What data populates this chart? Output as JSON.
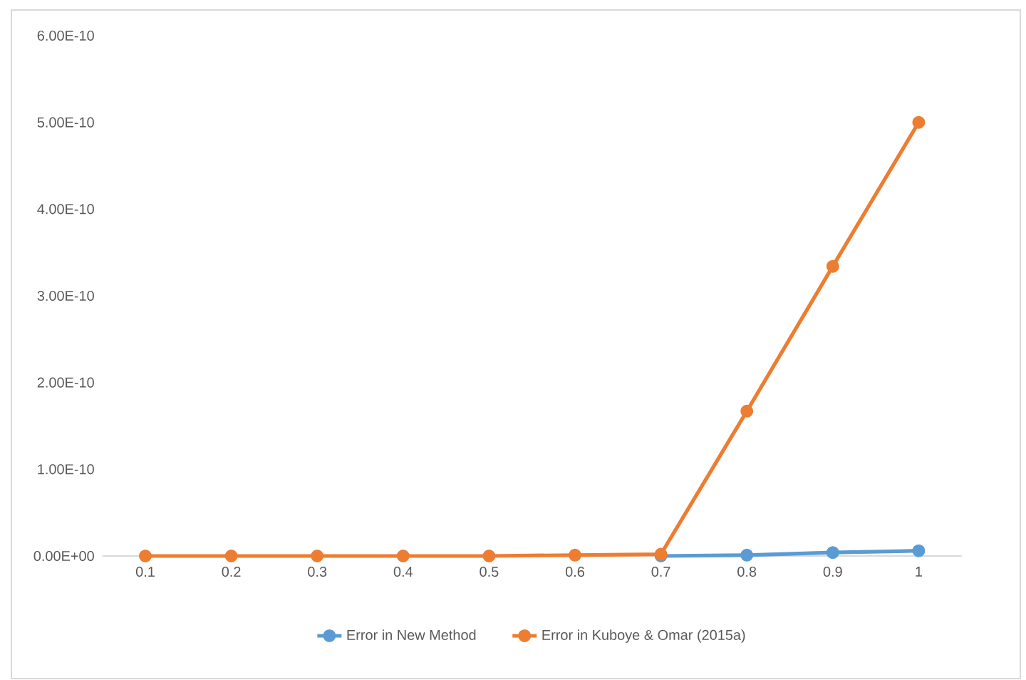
{
  "chart_data": {
    "type": "line",
    "categories": [
      "0.1",
      "0.2",
      "0.3",
      "0.4",
      "0.5",
      "0.6",
      "0.7",
      "0.8",
      "0.9",
      "1"
    ],
    "series": [
      {
        "name": "Error in New Method",
        "color": "#5b9bd5",
        "values": [
          null,
          null,
          null,
          null,
          null,
          null,
          0,
          1e-12,
          4e-12,
          6e-12
        ]
      },
      {
        "name": "Error in Kuboye & Omar (2015a)",
        "color": "#ed7d31",
        "values": [
          0,
          0,
          0,
          0,
          0,
          1e-12,
          2e-12,
          1.67e-10,
          3.34e-10,
          5e-10
        ]
      }
    ],
    "ylim": [
      0,
      6e-10
    ],
    "yticks": [
      {
        "value": 0,
        "label": "0.00E+00"
      },
      {
        "value": 1e-10,
        "label": "1.00E-10"
      },
      {
        "value": 2e-10,
        "label": "2.00E-10"
      },
      {
        "value": 3e-10,
        "label": "3.00E-10"
      },
      {
        "value": 4e-10,
        "label": "4.00E-10"
      },
      {
        "value": 5e-10,
        "label": "5.00E-10"
      },
      {
        "value": 6e-10,
        "label": "6.00E-10"
      }
    ],
    "legend": "bottom",
    "marker": "circle",
    "line_style": "solid",
    "grid": false
  }
}
